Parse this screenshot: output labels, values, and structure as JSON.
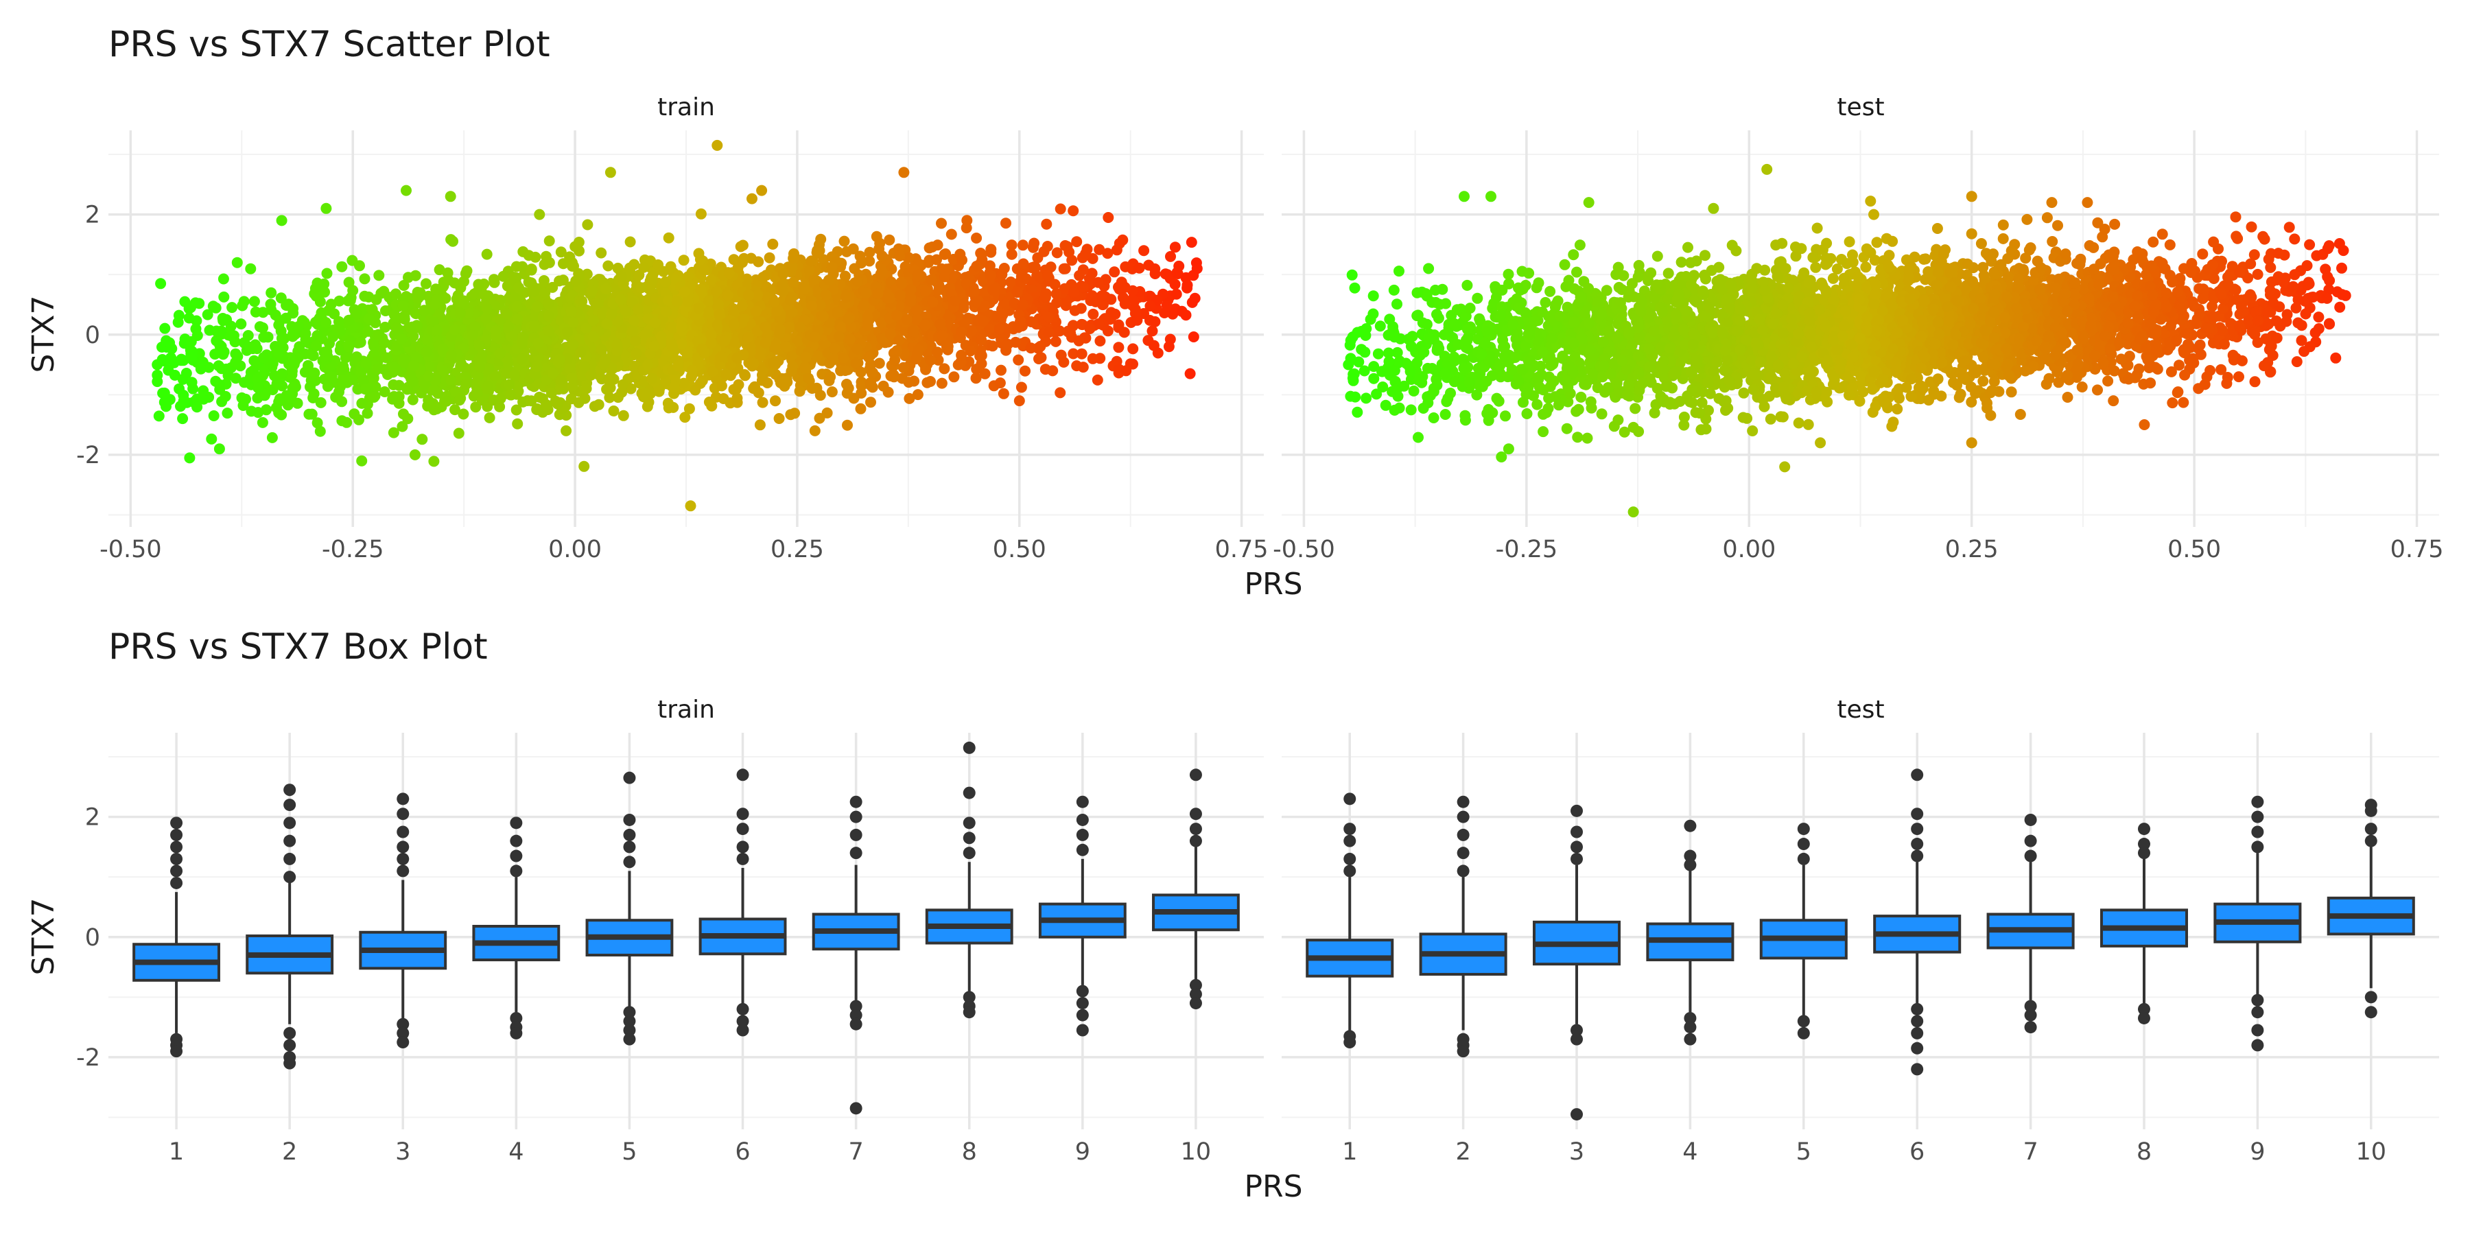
{
  "chart_data": [
    {
      "type": "scatter",
      "title": "PRS vs STX7 Scatter Plot",
      "xlabel": "PRS",
      "ylabel": "STX7",
      "xlim": [
        -0.5,
        0.75
      ],
      "ylim": [
        -3.2,
        3.4
      ],
      "x_ticks": [
        "-0.50",
        "-0.25",
        "0.00",
        "0.25",
        "0.50",
        "0.75"
      ],
      "y_ticks": [
        "2",
        "0",
        "-2"
      ],
      "grid": true,
      "color_gradient": {
        "low": "#33ff00",
        "mid": "#c8b400",
        "high": "#ff2200"
      },
      "panels": [
        {
          "name": "train",
          "x_range": [
            -0.47,
            0.7
          ],
          "y_spread": 0.55,
          "slope": 0.92,
          "points": [
            {
              "x": -0.47,
              "y": -0.5
            },
            {
              "x": -0.46,
              "y": -0.1
            },
            {
              "x": -0.43,
              "y": -0.9
            },
            {
              "x": -0.4,
              "y": -1.9
            },
            {
              "x": -0.38,
              "y": 1.2
            },
            {
              "x": -0.33,
              "y": 1.9
            },
            {
              "x": -0.28,
              "y": 2.1
            },
            {
              "x": -0.24,
              "y": -2.1
            },
            {
              "x": -0.19,
              "y": 2.4
            },
            {
              "x": -0.18,
              "y": -2.0
            },
            {
              "x": -0.14,
              "y": 2.3
            },
            {
              "x": -0.01,
              "y": -1.6
            },
            {
              "x": -0.04,
              "y": 2.0
            },
            {
              "x": 0.04,
              "y": 2.7
            },
            {
              "x": 0.13,
              "y": -2.85
            },
            {
              "x": 0.16,
              "y": 3.15
            },
            {
              "x": 0.21,
              "y": 2.4
            },
            {
              "x": 0.27,
              "y": -1.6
            },
            {
              "x": 0.37,
              "y": 2.7
            },
            {
              "x": 0.5,
              "y": -1.1
            },
            {
              "x": 0.6,
              "y": 1.95
            },
            {
              "x": 0.62,
              "y": -0.6
            },
            {
              "x": 0.64,
              "y": 1.4
            },
            {
              "x": 0.67,
              "y": 1.3
            },
            {
              "x": 0.7,
              "y": 1.1
            }
          ]
        },
        {
          "name": "test",
          "x_range": [
            -0.45,
            0.67
          ],
          "y_spread": 0.55,
          "slope": 0.75,
          "points": [
            {
              "x": -0.45,
              "y": -0.5
            },
            {
              "x": -0.43,
              "y": 0.1
            },
            {
              "x": -0.36,
              "y": 1.1
            },
            {
              "x": -0.32,
              "y": 2.3
            },
            {
              "x": -0.29,
              "y": 2.3
            },
            {
              "x": -0.27,
              "y": -1.9
            },
            {
              "x": -0.18,
              "y": 2.2
            },
            {
              "x": -0.13,
              "y": -2.95
            },
            {
              "x": -0.04,
              "y": 2.1
            },
            {
              "x": 0.02,
              "y": 2.75
            },
            {
              "x": 0.04,
              "y": -2.2
            },
            {
              "x": 0.08,
              "y": -1.8
            },
            {
              "x": 0.14,
              "y": 2.0
            },
            {
              "x": 0.25,
              "y": 2.3
            },
            {
              "x": 0.25,
              "y": -1.8
            },
            {
              "x": 0.34,
              "y": 2.2
            },
            {
              "x": 0.38,
              "y": 2.2
            },
            {
              "x": 0.55,
              "y": -0.7
            },
            {
              "x": 0.63,
              "y": -0.2
            },
            {
              "x": 0.64,
              "y": 0.1
            },
            {
              "x": 0.67,
              "y": 0.65
            }
          ]
        }
      ]
    },
    {
      "type": "box",
      "title": "PRS vs STX7 Box Plot",
      "xlabel": "PRS",
      "ylabel": "STX7",
      "categories": [
        "1",
        "2",
        "3",
        "4",
        "5",
        "6",
        "7",
        "8",
        "9",
        "10"
      ],
      "ylim": [
        -3.2,
        3.4
      ],
      "y_ticks": [
        "2",
        "0",
        "-2"
      ],
      "grid": true,
      "box_fill": "#1e90ff",
      "panels": [
        {
          "name": "train",
          "boxes": [
            {
              "q1": -0.72,
              "median": -0.42,
              "q3": -0.12,
              "lower": -1.6,
              "upper": 0.75,
              "outliers_low": [
                -1.7,
                -1.8,
                -1.9
              ],
              "outliers_high": [
                0.9,
                1.1,
                1.3,
                1.5,
                1.7,
                1.9
              ]
            },
            {
              "q1": -0.6,
              "median": -0.3,
              "q3": 0.02,
              "lower": -1.45,
              "upper": 0.9,
              "outliers_low": [
                -1.6,
                -1.8,
                -2.0,
                -2.1
              ],
              "outliers_high": [
                1.0,
                1.3,
                1.6,
                1.9,
                2.2,
                2.45
              ]
            },
            {
              "q1": -0.52,
              "median": -0.22,
              "q3": 0.08,
              "lower": -1.35,
              "upper": 0.95,
              "outliers_low": [
                -1.45,
                -1.6,
                -1.75
              ],
              "outliers_high": [
                1.1,
                1.3,
                1.5,
                1.75,
                2.05,
                2.3
              ]
            },
            {
              "q1": -0.38,
              "median": -0.1,
              "q3": 0.18,
              "lower": -1.25,
              "upper": 1.0,
              "outliers_low": [
                -1.35,
                -1.5,
                -1.6
              ],
              "outliers_high": [
                1.1,
                1.35,
                1.6,
                1.9
              ]
            },
            {
              "q1": -0.3,
              "median": 0.0,
              "q3": 0.28,
              "lower": -1.15,
              "upper": 1.1,
              "outliers_low": [
                -1.25,
                -1.4,
                -1.55,
                -1.7
              ],
              "outliers_high": [
                1.25,
                1.5,
                1.7,
                1.95,
                2.65
              ]
            },
            {
              "q1": -0.28,
              "median": 0.02,
              "q3": 0.3,
              "lower": -1.1,
              "upper": 1.15,
              "outliers_low": [
                -1.2,
                -1.4,
                -1.55
              ],
              "outliers_high": [
                1.3,
                1.5,
                1.8,
                2.05,
                2.7
              ]
            },
            {
              "q1": -0.2,
              "median": 0.1,
              "q3": 0.38,
              "lower": -1.05,
              "upper": 1.2,
              "outliers_low": [
                -1.15,
                -1.3,
                -1.45,
                -2.85
              ],
              "outliers_high": [
                1.4,
                1.7,
                2.0,
                2.25
              ]
            },
            {
              "q1": -0.1,
              "median": 0.18,
              "q3": 0.45,
              "lower": -0.9,
              "upper": 1.25,
              "outliers_low": [
                -1.0,
                -1.15,
                -1.25
              ],
              "outliers_high": [
                1.4,
                1.65,
                1.9,
                2.4,
                3.15
              ]
            },
            {
              "q1": 0.0,
              "median": 0.28,
              "q3": 0.55,
              "lower": -0.8,
              "upper": 1.3,
              "outliers_low": [
                -0.9,
                -1.1,
                -1.3,
                -1.55
              ],
              "outliers_high": [
                1.45,
                1.7,
                1.95,
                2.25
              ]
            },
            {
              "q1": 0.12,
              "median": 0.42,
              "q3": 0.7,
              "lower": -0.7,
              "upper": 1.5,
              "outliers_low": [
                -0.8,
                -0.95,
                -1.1
              ],
              "outliers_high": [
                1.6,
                1.8,
                2.05,
                2.7
              ]
            }
          ]
        },
        {
          "name": "test",
          "boxes": [
            {
              "q1": -0.65,
              "median": -0.35,
              "q3": -0.05,
              "lower": -1.55,
              "upper": 1.0,
              "outliers_low": [
                -1.65,
                -1.75
              ],
              "outliers_high": [
                1.1,
                1.3,
                1.6,
                1.8,
                2.3
              ]
            },
            {
              "q1": -0.62,
              "median": -0.28,
              "q3": 0.05,
              "lower": -1.55,
              "upper": 1.0,
              "outliers_low": [
                -1.7,
                -1.8,
                -1.9
              ],
              "outliers_high": [
                1.1,
                1.4,
                1.7,
                2.0,
                2.25
              ]
            },
            {
              "q1": -0.45,
              "median": -0.12,
              "q3": 0.25,
              "lower": -1.45,
              "upper": 1.2,
              "outliers_low": [
                -1.55,
                -1.7,
                -2.95
              ],
              "outliers_high": [
                1.3,
                1.5,
                1.75,
                2.1
              ]
            },
            {
              "q1": -0.38,
              "median": -0.05,
              "q3": 0.22,
              "lower": -1.25,
              "upper": 1.1,
              "outliers_low": [
                -1.35,
                -1.5,
                -1.7
              ],
              "outliers_high": [
                1.2,
                1.35,
                1.85
              ]
            },
            {
              "q1": -0.35,
              "median": -0.02,
              "q3": 0.28,
              "lower": -1.3,
              "upper": 1.2,
              "outliers_low": [
                -1.4,
                -1.6
              ],
              "outliers_high": [
                1.3,
                1.55,
                1.8
              ]
            },
            {
              "q1": -0.25,
              "median": 0.05,
              "q3": 0.35,
              "lower": -1.1,
              "upper": 1.25,
              "outliers_low": [
                -1.2,
                -1.4,
                -1.6,
                -1.85,
                -2.2
              ],
              "outliers_high": [
                1.35,
                1.55,
                1.8,
                2.05,
                2.7
              ]
            },
            {
              "q1": -0.18,
              "median": 0.12,
              "q3": 0.38,
              "lower": -1.05,
              "upper": 1.25,
              "outliers_low": [
                -1.15,
                -1.3,
                -1.5
              ],
              "outliers_high": [
                1.35,
                1.6,
                1.95
              ]
            },
            {
              "q1": -0.15,
              "median": 0.15,
              "q3": 0.45,
              "lower": -1.1,
              "upper": 1.3,
              "outliers_low": [
                -1.2,
                -1.35
              ],
              "outliers_high": [
                1.4,
                1.55,
                1.8
              ]
            },
            {
              "q1": -0.08,
              "median": 0.25,
              "q3": 0.55,
              "lower": -0.95,
              "upper": 1.4,
              "outliers_low": [
                -1.05,
                -1.25,
                -1.55,
                -1.8
              ],
              "outliers_high": [
                1.5,
                1.75,
                2.0,
                2.25
              ]
            },
            {
              "q1": 0.05,
              "median": 0.35,
              "q3": 0.65,
              "lower": -0.85,
              "upper": 1.5,
              "outliers_low": [
                -1.0,
                -1.25
              ],
              "outliers_high": [
                1.6,
                1.8,
                2.1,
                2.2
              ]
            }
          ]
        }
      ]
    }
  ]
}
